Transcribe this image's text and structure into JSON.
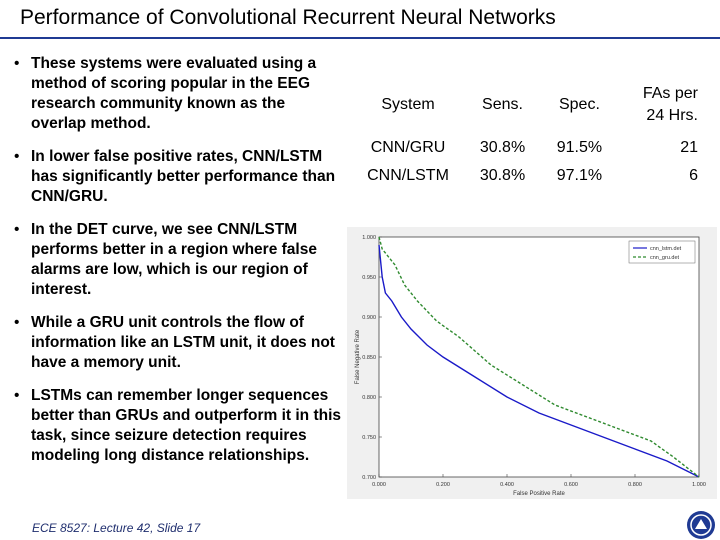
{
  "slide": {
    "title": "Performance of Convolutional Recurrent Neural Networks",
    "footer": "ECE 8527: Lecture 42, Slide 17",
    "bullets": [
      "These systems were evaluated using a method of scoring popular in the EEG research community known as the overlap method.",
      "In lower false positive rates, CNN/LSTM has significantly better performance than CNN/GRU.",
      "In the DET curve, we see CNN/LSTM performs better in a region where false alarms are low, which is our region of interest.",
      "While a GRU unit controls the flow of information like an LSTM unit, it does not have a memory unit.",
      "LSTMs can remember longer sequences better than GRUs and outperform it in this task, since seizure detection requires modeling long distance relationships."
    ],
    "bullet_symbol": "•"
  },
  "table": {
    "headers": [
      "System",
      "Sens.",
      "Spec.",
      "FAs per",
      "24 Hrs."
    ],
    "rows": [
      [
        "CNN/GRU",
        "30.8%",
        "91.5%",
        "21"
      ],
      [
        "CNN/LSTM",
        "30.8%",
        "97.1%",
        "6"
      ]
    ]
  },
  "colors": {
    "title_rule": "#1f3a93",
    "lstm_line": "#1a1ac8",
    "gru_line": "#2f8a2f",
    "footer": "#1f2e6e"
  },
  "chart_data": {
    "type": "line",
    "title": "",
    "xlabel": "False Positive Rate",
    "ylabel": "False Negative Rate",
    "xlim": [
      0,
      1
    ],
    "ylim": [
      0.7,
      1
    ],
    "xticks": [
      "0.000",
      "0.200",
      "0.400",
      "0.600",
      "0.800",
      "1.000"
    ],
    "yticks": [
      "0.700",
      "0.750",
      "0.800",
      "0.850",
      "0.900",
      "0.950",
      "1.000"
    ],
    "legend": {
      "placement": "top-right",
      "entries": [
        "cnn_lstm.det",
        "cnn_gru.det"
      ]
    },
    "series": [
      {
        "name": "cnn_lstm.det",
        "style": "solid",
        "color": "#1a1ac8",
        "x": [
          0,
          0.01,
          0.02,
          0.04,
          0.07,
          0.1,
          0.15,
          0.2,
          0.3,
          0.4,
          0.5,
          0.6,
          0.7,
          0.8,
          0.9,
          0.95,
          1.0
        ],
        "y": [
          0.99,
          0.95,
          0.93,
          0.92,
          0.9,
          0.885,
          0.865,
          0.85,
          0.825,
          0.8,
          0.78,
          0.765,
          0.75,
          0.735,
          0.72,
          0.71,
          0.7
        ]
      },
      {
        "name": "cnn_gru.det",
        "style": "dashed",
        "color": "#2f8a2f",
        "x": [
          0,
          0.01,
          0.03,
          0.05,
          0.08,
          0.12,
          0.18,
          0.25,
          0.35,
          0.45,
          0.55,
          0.65,
          0.75,
          0.85,
          0.92,
          1.0
        ],
        "y": [
          1.0,
          0.985,
          0.975,
          0.965,
          0.94,
          0.92,
          0.895,
          0.875,
          0.84,
          0.815,
          0.79,
          0.775,
          0.76,
          0.745,
          0.725,
          0.7
        ]
      }
    ]
  }
}
